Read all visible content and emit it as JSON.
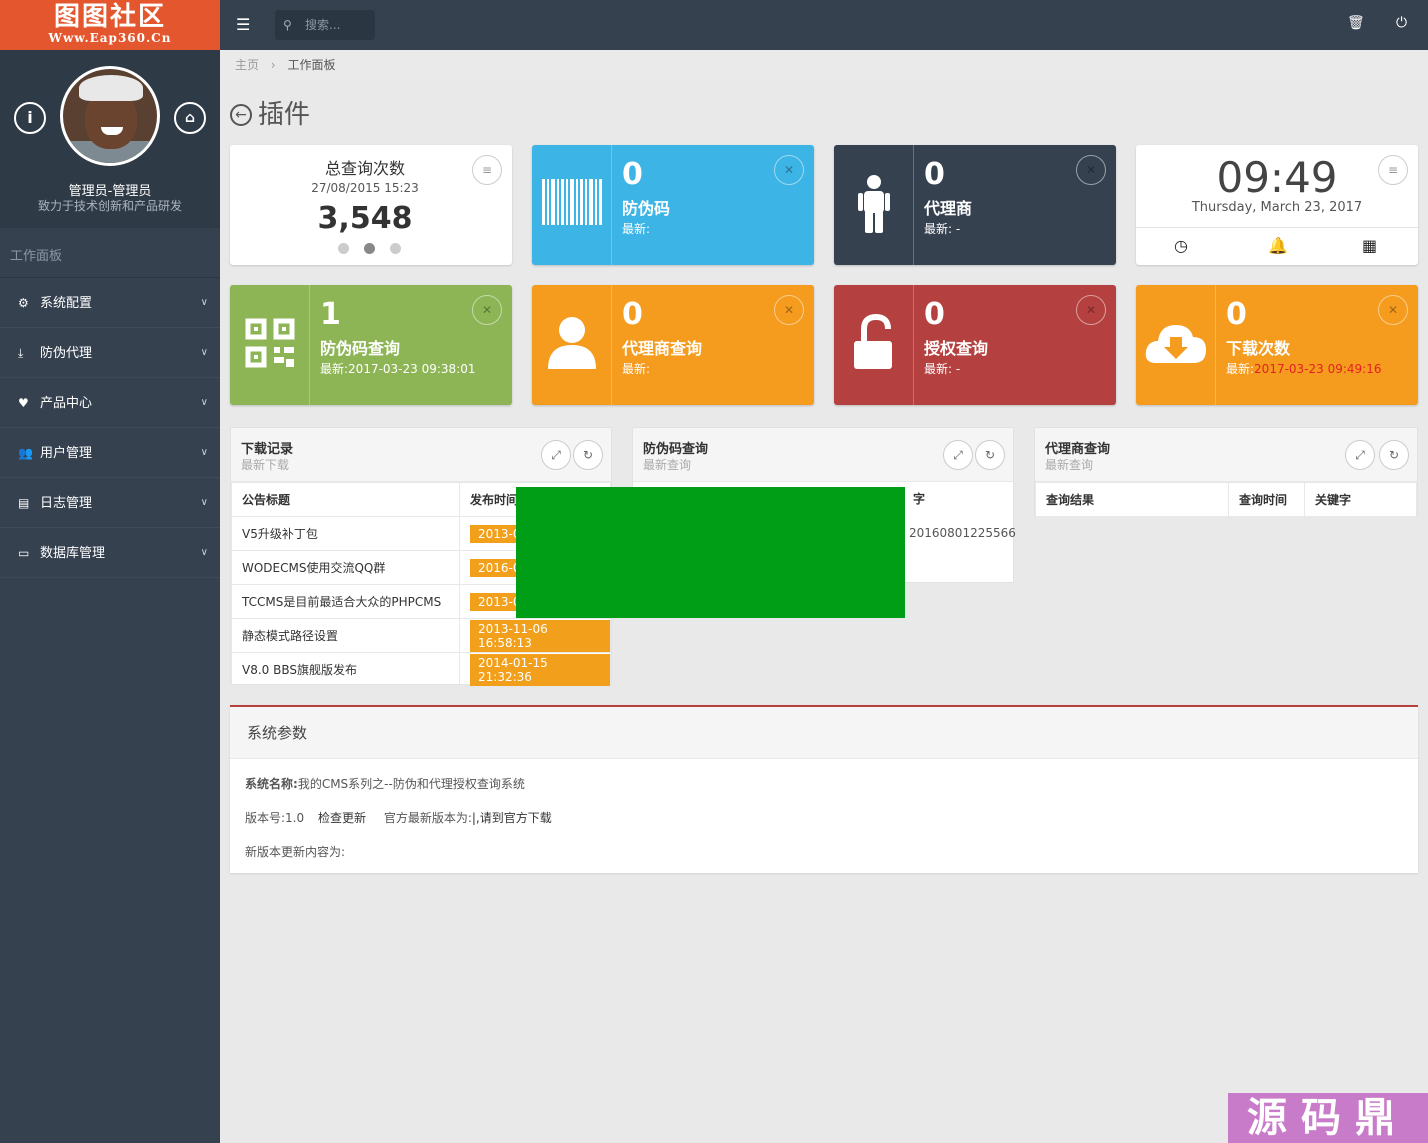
{
  "logo": {
    "title": "图图社区",
    "url": "Www.Eap360.Cn"
  },
  "profile": {
    "name": "管理员-管理员",
    "motto": "致力于技术创新和产品研发"
  },
  "sidebar": {
    "section": "工作面板",
    "items": [
      {
        "label": "系统配置",
        "icon": "gears-icon"
      },
      {
        "label": "防伪代理",
        "icon": "download-icon"
      },
      {
        "label": "产品中心",
        "icon": "heart-icon"
      },
      {
        "label": "用户管理",
        "icon": "users-icon"
      },
      {
        "label": "日志管理",
        "icon": "book-icon"
      },
      {
        "label": "数据库管理",
        "icon": "hdd-icon"
      }
    ]
  },
  "topbar": {
    "search_placeholder": "搜索..."
  },
  "breadcrumb": {
    "home": "主页",
    "current": "工作面板"
  },
  "page": {
    "title": "插件"
  },
  "stats": {
    "title": "总查询次数",
    "date": "27/08/2015 15:23",
    "value": "3,548"
  },
  "clock": {
    "time": "09:49",
    "date": "Thursday, March 23, 2017"
  },
  "tiles": [
    {
      "num": "0",
      "label": "防伪码",
      "latest_prefix": "最新:",
      "latest_value": "",
      "color": "#3cb4e5",
      "icon": "barcode-icon"
    },
    {
      "num": "0",
      "label": "代理商",
      "latest_prefix": "最新:",
      "latest_value": " -",
      "color": "#364150",
      "icon": "male-icon"
    },
    {
      "num": "1",
      "label": "防伪码查询",
      "latest_prefix": "最新:",
      "latest_value": "2017-03-23 09:38:01",
      "color": "#8db556",
      "icon": "qrcode-icon"
    },
    {
      "num": "0",
      "label": "代理商查询",
      "latest_prefix": "最新:",
      "latest_value": "",
      "color": "#f59b1e",
      "icon": "user-icon"
    },
    {
      "num": "0",
      "label": "授权查询",
      "latest_prefix": "最新:",
      "latest_value": " -",
      "color": "#b4403f",
      "icon": "unlock-icon"
    },
    {
      "num": "0",
      "label": "下载次数",
      "latest_prefix": "最新:",
      "latest_value": "2017-03-23 09:49:16",
      "color": "#f59b1e",
      "icon": "cloud-download-icon"
    }
  ],
  "downloads": {
    "title": "下载记录",
    "subtitle": "最新下载",
    "headers": [
      "公告标题",
      "发布时间"
    ],
    "rows": [
      {
        "title": "V5升级补丁包",
        "date": "2013-0"
      },
      {
        "title": "WODECMS使用交流QQ群",
        "date": "2016-0"
      },
      {
        "title": "TCCMS是目前最适合大众的PHPCMS",
        "date": "2013-0"
      },
      {
        "title": "静态模式路径设置",
        "date": "2013-11-06 16:58:13"
      },
      {
        "title": "V8.0 BBS旗舰版发布",
        "date": "2014-01-15 21:32:36"
      }
    ]
  },
  "code_query": {
    "title": "防伪码查询",
    "subtitle": "最新查询",
    "header_partial": "字",
    "row_value": "20160801225566"
  },
  "agent_query": {
    "title": "代理商查询",
    "subtitle": "最新查询",
    "headers": [
      "查询结果",
      "查询时间",
      "关键字"
    ]
  },
  "system": {
    "title": "系统参数",
    "name_label": "系统名称:",
    "name_value": "我的CMS系列之--防伪和代理授权查询系统",
    "version_label": "版本号:",
    "version_value": "1.0",
    "check_update": "检查更新",
    "latest_label": "官方最新版本为:",
    "latest_value": "|,请到官方下载",
    "changelog_label": "新版本更新内容为:"
  },
  "watermark": "源码鼎",
  "colors": {
    "sidebar": "#364150",
    "logo": "#e4572e",
    "accent_red": "#e32222"
  }
}
